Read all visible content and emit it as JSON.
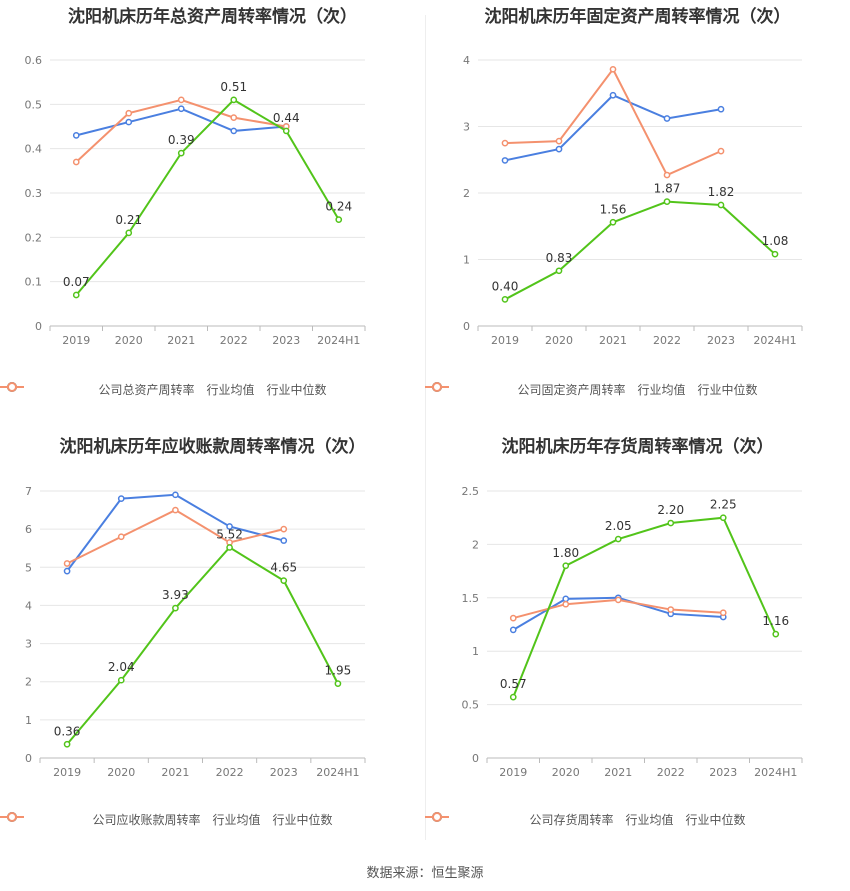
{
  "colors": {
    "company": "#52c41a",
    "avg": "#4a7fe0",
    "median": "#f4916e",
    "grid": "#e6e6e6",
    "axis": "#999999"
  },
  "source": "数据来源：恒生聚源",
  "chart_data": [
    {
      "type": "line",
      "title": "沈阳机床历年总资产周转率情况（次）",
      "categories": [
        "2019",
        "2020",
        "2021",
        "2022",
        "2023",
        "2024H1"
      ],
      "ylim": [
        0,
        0.6
      ],
      "yticks": [
        "0",
        "0.1",
        "0.2",
        "0.3",
        "0.4",
        "0.5",
        "0.6"
      ],
      "grid": true,
      "legend_position": "bottom",
      "series": [
        {
          "name": "公司总资产周转率",
          "role": "company",
          "values": [
            0.07,
            0.21,
            0.39,
            0.51,
            0.44,
            0.24
          ],
          "labels": [
            "0.07",
            "0.21",
            "0.39",
            "0.51",
            "0.44",
            "0.24"
          ]
        },
        {
          "name": "行业均值",
          "role": "avg",
          "values": [
            0.43,
            0.46,
            0.49,
            0.44,
            0.45,
            null
          ]
        },
        {
          "name": "行业中位数",
          "role": "median",
          "values": [
            0.37,
            0.48,
            0.51,
            0.47,
            0.45,
            null
          ]
        }
      ]
    },
    {
      "type": "line",
      "title": "沈阳机床历年固定资产周转率情况（次）",
      "categories": [
        "2019",
        "2020",
        "2021",
        "2022",
        "2023",
        "2024H1"
      ],
      "ylim": [
        0,
        4
      ],
      "yticks": [
        "0",
        "1",
        "2",
        "3",
        "4"
      ],
      "grid": true,
      "legend_position": "bottom",
      "series": [
        {
          "name": "公司固定资产周转率",
          "role": "company",
          "values": [
            0.4,
            0.83,
            1.56,
            1.87,
            1.82,
            1.08
          ],
          "labels": [
            "0.40",
            "0.83",
            "1.56",
            "1.87",
            "1.82",
            "1.08"
          ]
        },
        {
          "name": "行业均值",
          "role": "avg",
          "values": [
            2.49,
            2.66,
            3.47,
            3.12,
            3.26,
            null
          ]
        },
        {
          "name": "行业中位数",
          "role": "median",
          "values": [
            2.75,
            2.78,
            3.86,
            2.27,
            2.63,
            null
          ]
        }
      ]
    },
    {
      "type": "line",
      "title": "沈阳机床历年应收账款周转率情况（次）",
      "categories": [
        "2019",
        "2020",
        "2021",
        "2022",
        "2023",
        "2024H1"
      ],
      "ylim": [
        0,
        7
      ],
      "yticks": [
        "0",
        "1",
        "2",
        "3",
        "4",
        "5",
        "6",
        "7"
      ],
      "grid": true,
      "legend_position": "bottom",
      "series": [
        {
          "name": "公司应收账款周转率",
          "role": "company",
          "values": [
            0.36,
            2.04,
            3.93,
            5.52,
            4.65,
            1.95
          ],
          "labels": [
            "0.36",
            "2.04",
            "3.93",
            "5.52",
            "4.65",
            "1.95"
          ]
        },
        {
          "name": "行业均值",
          "role": "avg",
          "values": [
            4.9,
            6.8,
            6.9,
            6.07,
            5.7,
            null
          ]
        },
        {
          "name": "行业中位数",
          "role": "median",
          "values": [
            5.1,
            5.8,
            6.5,
            5.65,
            6.0,
            null
          ]
        }
      ]
    },
    {
      "type": "line",
      "title": "沈阳机床历年存货周转率情况（次）",
      "categories": [
        "2019",
        "2020",
        "2021",
        "2022",
        "2023",
        "2024H1"
      ],
      "ylim": [
        0,
        2.5
      ],
      "yticks": [
        "0",
        "0.5",
        "1",
        "1.5",
        "2",
        "2.5"
      ],
      "grid": true,
      "legend_position": "bottom",
      "series": [
        {
          "name": "公司存货周转率",
          "role": "company",
          "values": [
            0.57,
            1.8,
            2.05,
            2.2,
            2.25,
            1.16
          ],
          "labels": [
            "0.57",
            "1.80",
            "2.05",
            "2.20",
            "2.25",
            "1.16"
          ]
        },
        {
          "name": "行业均值",
          "role": "avg",
          "values": [
            1.2,
            1.49,
            1.5,
            1.35,
            1.32,
            null
          ]
        },
        {
          "name": "行业中位数",
          "role": "median",
          "values": [
            1.31,
            1.44,
            1.48,
            1.39,
            1.36,
            null
          ]
        }
      ]
    }
  ]
}
